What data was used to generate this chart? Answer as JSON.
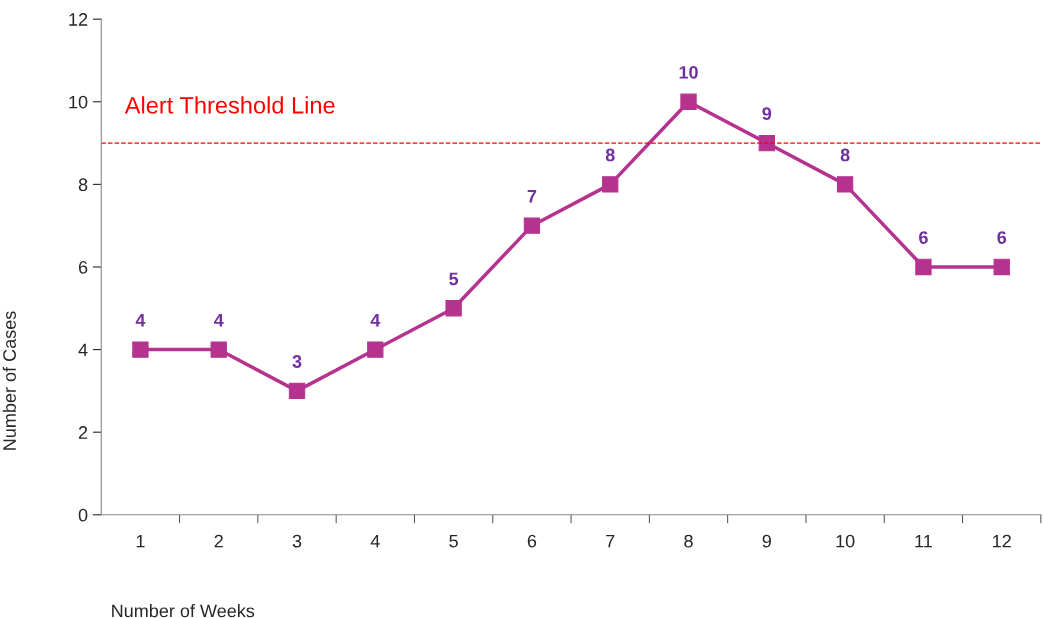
{
  "chart_data": {
    "type": "line",
    "xlabel": "Number of Weeks",
    "ylabel": "Number of Cases",
    "categories": [
      "1",
      "2",
      "3",
      "4",
      "5",
      "6",
      "7",
      "8",
      "9",
      "10",
      "11",
      "12"
    ],
    "series": [
      {
        "color": "#b5338f",
        "values": [
          4,
          4,
          3,
          4,
          5,
          7,
          8,
          10,
          9,
          8,
          6,
          6
        ]
      }
    ],
    "ylim": [
      0,
      12
    ],
    "yticks": [
      0,
      2,
      4,
      6,
      8,
      10,
      12
    ],
    "ref_lines": [
      {
        "axis": "y",
        "value": 9,
        "label": "Alert Threshold Line",
        "color": "#ff0000",
        "line_style": "dashed"
      }
    ],
    "data_labels": true,
    "marker": "square",
    "line_style": "solid",
    "grid": false,
    "legend": false
  }
}
